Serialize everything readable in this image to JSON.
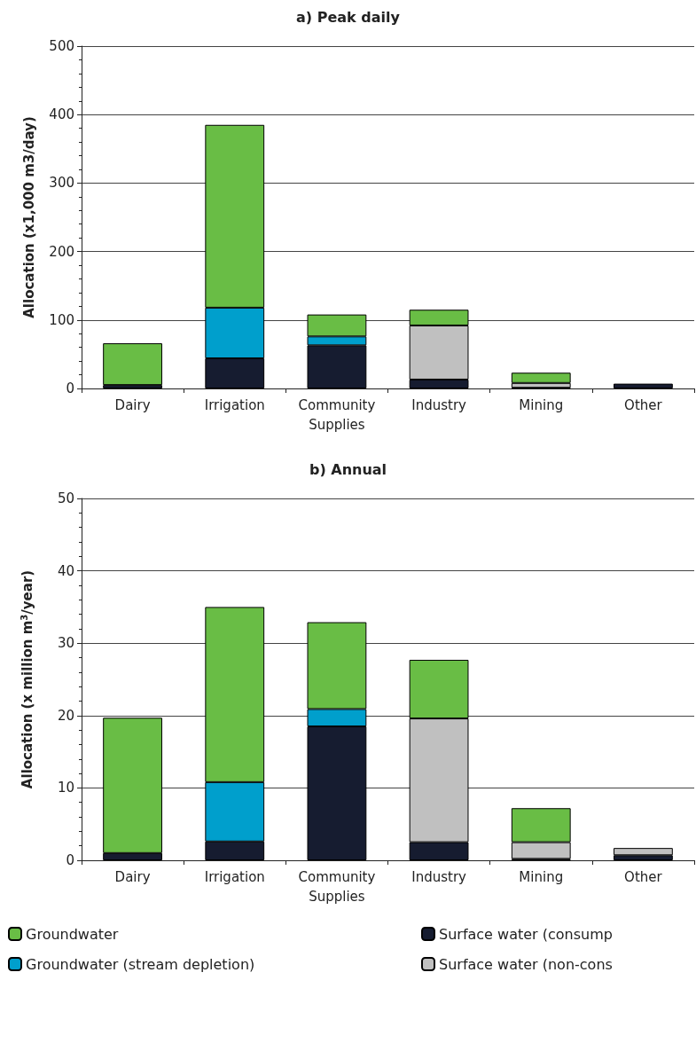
{
  "chart_data": [
    {
      "type": "bar",
      "title": "a) Peak daily",
      "ylabel": "Allocation (x1,000 m3/day)",
      "categories": [
        "Dairy",
        "Irrigation",
        "Community\nSupplies",
        "Industry",
        "Mining",
        "Other"
      ],
      "stacked": true,
      "ylim": [
        0,
        500
      ],
      "yticks": [
        0,
        100,
        200,
        300,
        400,
        500
      ],
      "grid": "y",
      "legend": false,
      "series": [
        {
          "color": "#161c30",
          "values": [
            5,
            44,
            63,
            13,
            1,
            7
          ]
        },
        {
          "color": "#c0c0c0",
          "values": [
            0,
            0,
            0,
            79,
            7,
            0
          ]
        },
        {
          "color": "#009fcc",
          "values": [
            0,
            74,
            13,
            0,
            0,
            0
          ]
        },
        {
          "color": "#69bd45",
          "values": [
            61,
            267,
            32,
            23,
            15,
            0
          ]
        }
      ]
    },
    {
      "type": "bar",
      "title": "b) Annual",
      "ylabel": "Allocation (x million m$^{3}$/year)",
      "categories": [
        "Dairy",
        "Irrigation",
        "Community\nSupplies",
        "Industry",
        "Mining",
        "Other"
      ],
      "stacked": true,
      "ylim": [
        0,
        50
      ],
      "yticks": [
        0,
        10,
        20,
        30,
        40,
        50
      ],
      "grid": "y",
      "legend": "bottom",
      "series": [
        {
          "name": "Surface water (consump",
          "color": "#161c30",
          "values": [
            1.0,
            2.6,
            18.5,
            2.5,
            0.2,
            0.7
          ]
        },
        {
          "name": "Surface water (non-cons",
          "color": "#c0c0c0",
          "values": [
            0,
            0,
            0,
            17.1,
            2.3,
            1.0
          ]
        },
        {
          "name": "Groundwater (stream depletion)",
          "color": "#009fcc",
          "values": [
            0,
            8.2,
            2.4,
            0,
            0,
            0
          ]
        },
        {
          "name": "Groundwater",
          "color": "#69bd45",
          "values": [
            18.7,
            24.2,
            12.0,
            8.1,
            4.7,
            0
          ]
        }
      ]
    }
  ]
}
